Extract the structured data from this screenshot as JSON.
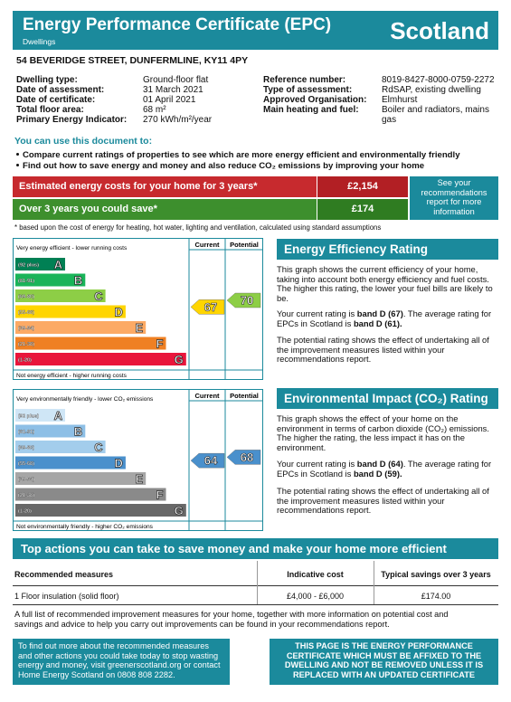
{
  "header": {
    "title": "Energy Performance Certificate (EPC)",
    "subtitle": "Dwellings",
    "region": "Scotland"
  },
  "address": "54 BEVERIDGE STREET, DUNFERMLINE, KY11 4PY",
  "details": {
    "left": [
      [
        "Dwelling type:",
        "Ground-floor flat"
      ],
      [
        "Date of assessment:",
        "31 March 2021"
      ],
      [
        "Date of certificate:",
        "01 April 2021"
      ],
      [
        "Total floor area:",
        "68 m²"
      ],
      [
        "Primary Energy Indicator:",
        "270 kWh/m²/year"
      ]
    ],
    "right": [
      [
        "Reference number:",
        "8019-8427-8000-0759-2272"
      ],
      [
        "Type of assessment:",
        "RdSAP, existing dwelling"
      ],
      [
        "Approved Organisation:",
        "Elmhurst"
      ],
      [
        "Main heating and fuel:",
        "Boiler and radiators, mains gas"
      ]
    ]
  },
  "uses": {
    "heading": "You can use this document to:",
    "bullets": [
      "Compare current ratings of properties to see which are more energy efficient and environmentally friendly",
      "Find out how to save energy and money and also reduce CO₂ emissions by improving your home"
    ]
  },
  "costs": {
    "estimated_label": "Estimated energy costs for your home for 3 years*",
    "estimated_value": "£2,154",
    "savings_label": "Over 3 years you could save*",
    "savings_value": "£174",
    "note": "See your recommendations report for more information",
    "footnote": "* based upon the cost of energy for heating, hot water, lighting and ventilation, calculated using standard assumptions"
  },
  "energy_chart": {
    "column_current": "Current",
    "column_potential": "Potential",
    "top_label": "Very energy efficient - lower running costs",
    "bottom_label": "Not energy efficient - higher running costs",
    "current": 67,
    "potential": 70,
    "bands": [
      {
        "letter": "A",
        "range": "(92 plus)",
        "color": "#008054"
      },
      {
        "letter": "B",
        "range": "(81-91)",
        "color": "#19b459"
      },
      {
        "letter": "C",
        "range": "(69-80)",
        "color": "#8dce46"
      },
      {
        "letter": "D",
        "range": "(55-68)",
        "color": "#ffd500"
      },
      {
        "letter": "E",
        "range": "(39-54)",
        "color": "#fcaa65"
      },
      {
        "letter": "F",
        "range": "(21-38)",
        "color": "#ef8023"
      },
      {
        "letter": "G",
        "range": "(1-20)",
        "color": "#e9153b"
      }
    ]
  },
  "energy_text": {
    "heading": "Energy Efficiency Rating",
    "paragraphs": [
      [
        {
          "text": "This graph shows the current efficiency of your home, taking into account both energy efficiency and fuel costs. The higher this rating, the lower your fuel bills are likely to be."
        }
      ],
      [
        {
          "text": "Your current rating is "
        },
        {
          "text": "band D (67)",
          "bold": true
        },
        {
          "text": ". The average rating for EPCs in Scotland is "
        },
        {
          "text": "band D (61).",
          "bold": true
        }
      ],
      [
        {
          "text": "The potential rating shows the effect of undertaking all of the improvement measures listed within your recommendations report."
        }
      ]
    ]
  },
  "environment_chart": {
    "column_current": "Current",
    "column_potential": "Potential",
    "top_label": "Very environmentally friendly - lower CO₂ emissions",
    "bottom_label": "Not environmentally friendly - higher CO₂ emissions",
    "current": 64,
    "potential": 68,
    "bands": [
      {
        "letter": "A",
        "range": "(92 plus)",
        "color": "#cfe6f6"
      },
      {
        "letter": "B",
        "range": "(81-91)",
        "color": "#8dbfe6"
      },
      {
        "letter": "C",
        "range": "(69-80)",
        "color": "#a3cdec"
      },
      {
        "letter": "D",
        "range": "(55-68)",
        "color": "#4a90cc"
      },
      {
        "letter": "E",
        "range": "(39-54)",
        "color": "#a6a6a6"
      },
      {
        "letter": "F",
        "range": "(21-38)",
        "color": "#8a8a8a"
      },
      {
        "letter": "G",
        "range": "(1-20)",
        "color": "#686868"
      }
    ]
  },
  "environment_text": {
    "heading": "Environmental Impact (CO₂) Rating",
    "paragraphs": [
      [
        {
          "text": "This graph shows the effect of your home on the environment in terms of carbon dioxide (CO₂) emissions. The higher the rating, the less impact it has on the environment."
        }
      ],
      [
        {
          "text": "Your current rating is "
        },
        {
          "text": "band D (64)",
          "bold": true
        },
        {
          "text": ". The average rating for EPCs in Scotland is "
        },
        {
          "text": "band D (59).",
          "bold": true
        }
      ],
      [
        {
          "text": "The potential rating shows the effect of undertaking all of the improvement measures listed within your recommendations report."
        }
      ]
    ]
  },
  "actions": {
    "heading": "Top actions you can take to save money and make your home more efficient",
    "table": {
      "header": [
        "Recommended measures",
        "Indicative cost",
        "Typical savings over 3 years"
      ],
      "rows": [
        [
          "1 Floor insulation (solid floor)",
          "£4,000 - £6,000",
          "£174.00"
        ]
      ]
    },
    "note": "A full list of recommended improvement measures for your home, together with more information on potential cost and savings and advice to help you carry out improvements can be found in your recommendations report."
  },
  "footer": {
    "info": "To find out more about the recommended measures and other actions you could take today to stop wasting energy and money, visit greenerscotland.org or contact Home Energy Scotland on 0808 808 2282.",
    "notice": "THIS PAGE IS THE ENERGY PERFORMANCE CERTIFICATE WHICH MUST BE AFFIXED TO THE DWELLING AND NOT BE REMOVED UNLESS IT IS REPLACED WITH AN UPDATED CERTIFICATE"
  }
}
